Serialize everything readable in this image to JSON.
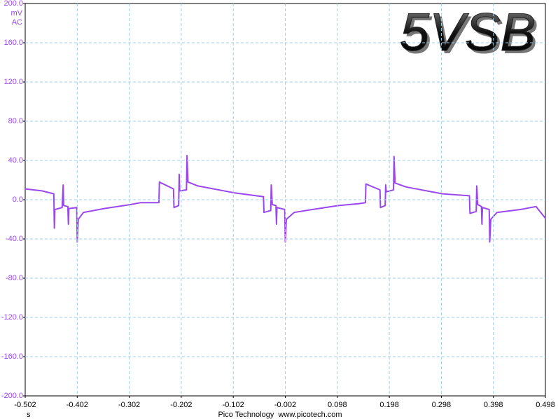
{
  "chart_data": {
    "type": "line",
    "title": "5VSB",
    "y_unit": "mV",
    "coupling": "AC",
    "x_label": "s",
    "footer": "Pico Technology  www.picotech.com",
    "grid": true,
    "ylim": [
      -200,
      200
    ],
    "yticks": [
      {
        "value": -200,
        "label": "-200.0"
      },
      {
        "value": -160,
        "label": "-160.0"
      },
      {
        "value": -120,
        "label": "-120.0"
      },
      {
        "value": -80,
        "label": "-80.0"
      },
      {
        "value": -40,
        "label": "-40.0"
      },
      {
        "value": 0,
        "label": "0.0"
      },
      {
        "value": 40,
        "label": "40.0"
      },
      {
        "value": 80,
        "label": "80.0"
      },
      {
        "value": 120,
        "label": "120.0"
      },
      {
        "value": 160,
        "label": "160.0"
      },
      {
        "value": 200,
        "label": "200.0"
      }
    ],
    "xlim": [
      -0.502,
      0.498
    ],
    "xticks": [
      -0.502,
      -0.402,
      -0.302,
      -0.202,
      -0.102,
      -0.002,
      0.098,
      0.198,
      0.298,
      0.398,
      0.498
    ],
    "x": [
      -0.502,
      -0.47,
      -0.447,
      -0.446,
      -0.445,
      -0.431,
      -0.429,
      -0.428,
      -0.42,
      -0.419,
      -0.418,
      -0.403,
      -0.402,
      -0.4,
      -0.39,
      -0.35,
      -0.3,
      -0.28,
      -0.245,
      -0.244,
      -0.217,
      -0.216,
      -0.207,
      -0.206,
      -0.205,
      -0.192,
      -0.191,
      -0.189,
      -0.17,
      -0.1,
      -0.044,
      -0.043,
      -0.03,
      -0.029,
      -0.027,
      -0.02,
      -0.019,
      -0.018,
      -0.003,
      -0.002,
      0.0,
      0.015,
      0.05,
      0.1,
      0.14,
      0.152,
      0.153,
      0.18,
      0.181,
      0.19,
      0.191,
      0.192,
      0.206,
      0.207,
      0.209,
      0.23,
      0.3,
      0.352,
      0.353,
      0.365,
      0.366,
      0.368,
      0.375,
      0.376,
      0.377,
      0.39,
      0.391,
      0.393,
      0.405,
      0.45,
      0.47,
      0.48,
      0.498
    ],
    "series": [
      {
        "color": "#9a48ee",
        "values": [
          11,
          9,
          6,
          -29,
          -10,
          -8,
          15,
          -6,
          -7,
          -25,
          -9,
          -8,
          -43,
          -20,
          -13,
          -9,
          -5,
          -3,
          -3,
          18,
          11,
          -8,
          -6,
          26,
          9,
          10,
          45,
          18,
          14,
          7,
          3,
          -13,
          -11,
          15,
          -5,
          -6,
          -25,
          -8,
          -10,
          -43,
          -20,
          -13,
          -10,
          -6,
          -4,
          -3,
          16,
          10,
          -8,
          -6,
          15,
          8,
          10,
          44,
          17,
          13,
          6,
          4,
          -14,
          -12,
          14,
          -5,
          -7,
          -25,
          -8,
          -10,
          -43,
          -20,
          -13,
          -10,
          -8,
          -7,
          -19
        ]
      }
    ]
  }
}
